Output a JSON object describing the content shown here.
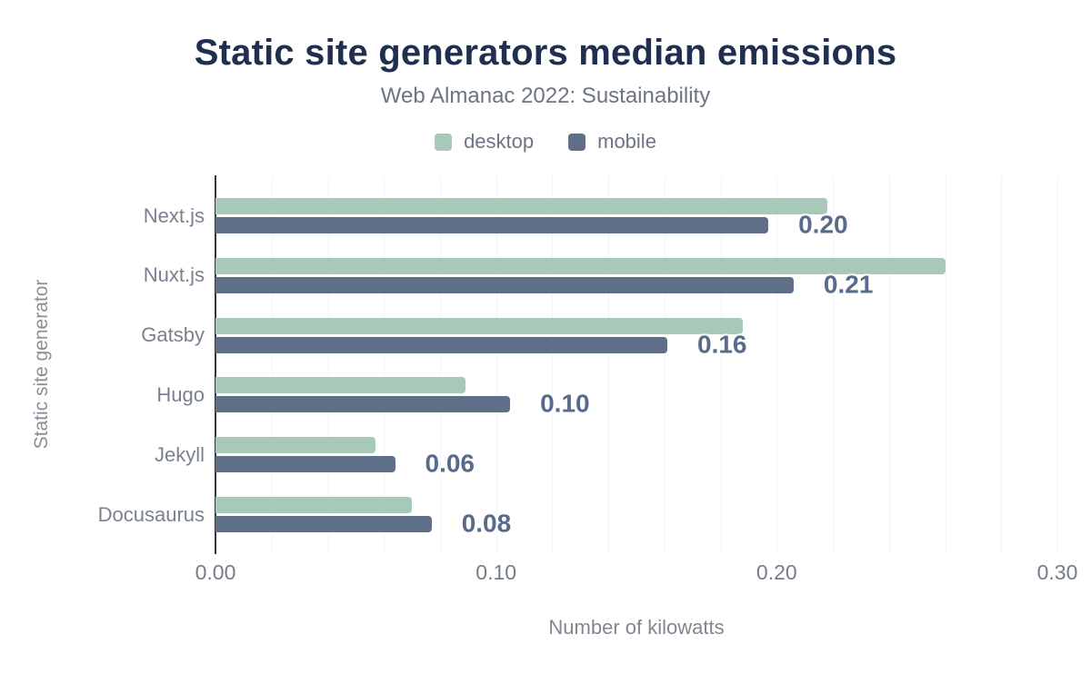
{
  "header": {
    "title": "Static site generators median emissions",
    "subtitle": "Web Almanac 2022: Sustainability"
  },
  "chart_data": {
    "type": "bar",
    "orientation": "horizontal",
    "title": "Static site generators median emissions",
    "subtitle": "Web Almanac 2022: Sustainability",
    "categories": [
      "Next.js",
      "Nuxt.js",
      "Gatsby",
      "Hugo",
      "Jekyll",
      "Docusaurus"
    ],
    "series": [
      {
        "name": "desktop",
        "color": "#a8c8b8",
        "values": [
          0.218,
          0.26,
          0.188,
          0.089,
          0.057,
          0.07
        ]
      },
      {
        "name": "mobile",
        "color": "#5f6f88",
        "values": [
          0.197,
          0.206,
          0.161,
          0.105,
          0.064,
          0.077
        ],
        "value_labels": [
          "0.20",
          "0.21",
          "0.16",
          "0.10",
          "0.06",
          "0.08"
        ]
      }
    ],
    "xlabel": "Number of kilowatts",
    "ylabel": "Static site generator",
    "xlim": [
      0,
      0.3
    ],
    "x_ticks": [
      "0.00",
      "0.10",
      "0.20",
      "0.30"
    ],
    "x_tick_values": [
      0,
      0.1,
      0.2,
      0.3
    ],
    "gridline_step": 0.02,
    "grid": true,
    "legend_position": "top"
  },
  "colors": {
    "background": "#ffffff",
    "title": "#202e4f",
    "subtitle": "#6d7482",
    "category_label": "#7a818e",
    "tick_label": "#767d89",
    "data_label": "#596b8c",
    "gridline": "#f2f3f6",
    "axis_line": "#333539",
    "desktop": "#a8c8b8",
    "mobile": "#5f6f88"
  }
}
